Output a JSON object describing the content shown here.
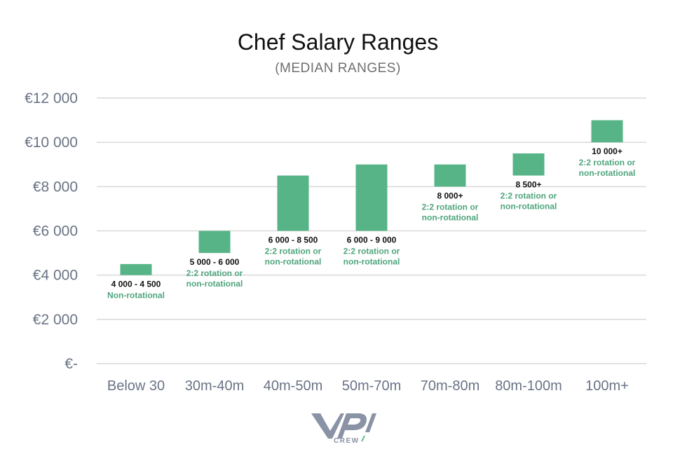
{
  "chart_data": {
    "type": "bar",
    "subtype": "floating-range",
    "title": "Chef Salary Ranges",
    "subtitle": "(MEDIAN RANGES)",
    "xlabel": "",
    "ylabel": "",
    "ylim": [
      0,
      12000
    ],
    "grid": true,
    "y_ticks": [
      {
        "value": 0,
        "label": "€-"
      },
      {
        "value": 2000,
        "label": "€2 000"
      },
      {
        "value": 4000,
        "label": "€4 000"
      },
      {
        "value": 6000,
        "label": "€6 000"
      },
      {
        "value": 8000,
        "label": "€8 000"
      },
      {
        "value": 10000,
        "label": "€10 000"
      },
      {
        "value": 12000,
        "label": "€12 000"
      }
    ],
    "bar_color": "#56b487",
    "note_color": "#4fa57d",
    "categories": [
      "Below 30",
      "30m-40m",
      "40m-50m",
      "50m-70m",
      "70m-80m",
      "80m-100m",
      "100m+"
    ],
    "bars": [
      {
        "low": 4000,
        "high": 4500,
        "range_label": "4 000 - 4 500",
        "note": [
          "Non-rotational"
        ]
      },
      {
        "low": 5000,
        "high": 6000,
        "range_label": "5 000 - 6 000",
        "note": [
          "2:2 rotation or",
          "non-rotational"
        ]
      },
      {
        "low": 6000,
        "high": 8500,
        "range_label": "6 000 - 8 500",
        "note": [
          "2:2 rotation or",
          "non-rotational"
        ]
      },
      {
        "low": 6000,
        "high": 9000,
        "range_label": "6 000 - 9 000",
        "note": [
          "2:2 rotation or",
          "non-rotational"
        ]
      },
      {
        "low": 8000,
        "high": 9000,
        "range_label": "8 000+",
        "note": [
          "2:2 rotation or",
          "non-rotational"
        ]
      },
      {
        "low": 8500,
        "high": 9500,
        "range_label": "8 500+",
        "note": [
          "2:2 rotation or",
          "non-rotational"
        ]
      },
      {
        "low": 10000,
        "high": 11000,
        "range_label": "10 000+",
        "note": [
          "2:2 rotation or",
          "non-rotational"
        ]
      }
    ]
  },
  "logo": {
    "text": "CREW",
    "color": "#8a93a5",
    "accent": "#56b487"
  }
}
